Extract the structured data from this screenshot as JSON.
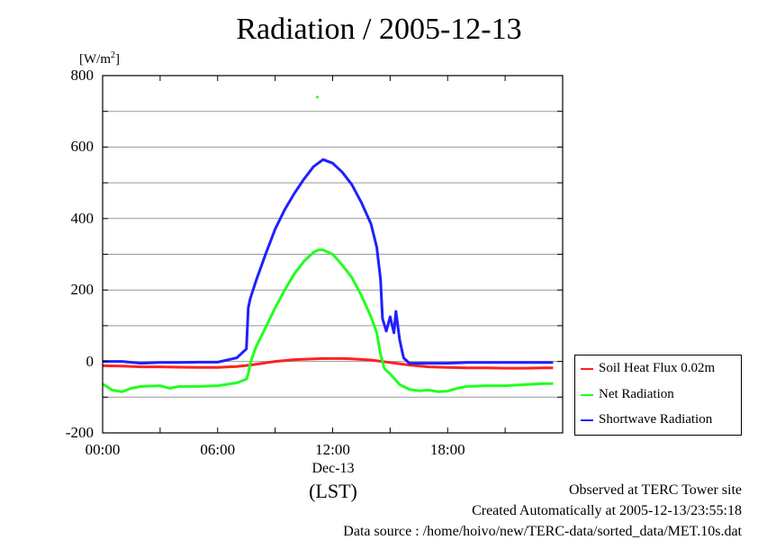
{
  "chart_data": {
    "type": "line",
    "title": "Radiation / 2005-12-13",
    "unit_base": "[W/m",
    "unit_exp": "2",
    "unit_close": "]",
    "xlabel": "(LST)",
    "x_date_label": "Dec-13",
    "xlim": [
      0,
      24
    ],
    "ylim": [
      -200,
      800
    ],
    "x_ticks": [
      {
        "value": 0,
        "label": "00:00"
      },
      {
        "value": 6,
        "label": "06:00"
      },
      {
        "value": 12,
        "label": "12:00"
      },
      {
        "value": 18,
        "label": "18:00"
      }
    ],
    "y_ticks": [
      -200,
      0,
      200,
      400,
      600,
      800
    ],
    "grid": true,
    "legend_position": "bottom-right, outside plot",
    "series": [
      {
        "name": "Soil Heat Flux 0.02m",
        "color": "#ff2020",
        "points": [
          [
            0,
            -12
          ],
          [
            1,
            -13
          ],
          [
            2,
            -15
          ],
          [
            3,
            -15
          ],
          [
            4,
            -16
          ],
          [
            5,
            -17
          ],
          [
            6,
            -17
          ],
          [
            7,
            -14
          ],
          [
            7.7,
            -10
          ],
          [
            8,
            -8
          ],
          [
            9,
            0
          ],
          [
            10,
            5
          ],
          [
            11,
            7
          ],
          [
            11.5,
            8
          ],
          [
            12,
            8
          ],
          [
            12.5,
            8
          ],
          [
            13,
            7
          ],
          [
            14,
            4
          ],
          [
            15,
            -3
          ],
          [
            16,
            -10
          ],
          [
            17,
            -15
          ],
          [
            18,
            -17
          ],
          [
            19,
            -18
          ],
          [
            20,
            -18
          ],
          [
            21,
            -19
          ],
          [
            22,
            -19
          ],
          [
            23,
            -18
          ],
          [
            23.5,
            -18
          ]
        ]
      },
      {
        "name": "Net Radiation",
        "color": "#20ff20",
        "points": [
          [
            0,
            -63
          ],
          [
            0.5,
            -80
          ],
          [
            1,
            -85
          ],
          [
            1.5,
            -75
          ],
          [
            2,
            -70
          ],
          [
            3,
            -68
          ],
          [
            3.5,
            -75
          ],
          [
            4,
            -70
          ],
          [
            5,
            -70
          ],
          [
            6,
            -68
          ],
          [
            7,
            -60
          ],
          [
            7.5,
            -50
          ],
          [
            7.6,
            -35
          ],
          [
            7.7,
            -5
          ],
          [
            8,
            40
          ],
          [
            8.5,
            95
          ],
          [
            9,
            150
          ],
          [
            9.5,
            200
          ],
          [
            10,
            245
          ],
          [
            10.5,
            280
          ],
          [
            11,
            305
          ],
          [
            11.25,
            312
          ],
          [
            11.5,
            312
          ],
          [
            12,
            300
          ],
          [
            12.5,
            270
          ],
          [
            13,
            235
          ],
          [
            13.5,
            185
          ],
          [
            14,
            125
          ],
          [
            14.3,
            80
          ],
          [
            14.5,
            20
          ],
          [
            14.7,
            -20
          ],
          [
            15,
            -35
          ],
          [
            15.5,
            -65
          ],
          [
            16,
            -78
          ],
          [
            16.5,
            -82
          ],
          [
            17,
            -80
          ],
          [
            17.5,
            -85
          ],
          [
            18,
            -83
          ],
          [
            18.5,
            -75
          ],
          [
            19,
            -70
          ],
          [
            20,
            -68
          ],
          [
            21,
            -68
          ],
          [
            22,
            -65
          ],
          [
            23,
            -62
          ],
          [
            23.5,
            -62
          ]
        ]
      },
      {
        "name": "Shortwave Radiation",
        "color": "#2020ff",
        "points": [
          [
            0,
            0
          ],
          [
            1,
            0
          ],
          [
            2,
            -5
          ],
          [
            3,
            -3
          ],
          [
            4,
            -3
          ],
          [
            5,
            -2
          ],
          [
            6,
            -2
          ],
          [
            7,
            10
          ],
          [
            7.5,
            35
          ],
          [
            7.6,
            150
          ],
          [
            7.7,
            175
          ],
          [
            8,
            225
          ],
          [
            8.5,
            300
          ],
          [
            9,
            370
          ],
          [
            9.5,
            425
          ],
          [
            10,
            470
          ],
          [
            10.5,
            510
          ],
          [
            11,
            545
          ],
          [
            11.5,
            565
          ],
          [
            12,
            555
          ],
          [
            12.5,
            530
          ],
          [
            13,
            495
          ],
          [
            13.5,
            445
          ],
          [
            14,
            385
          ],
          [
            14.3,
            320
          ],
          [
            14.5,
            230
          ],
          [
            14.6,
            120
          ],
          [
            14.8,
            85
          ],
          [
            15,
            125
          ],
          [
            15.2,
            80
          ],
          [
            15.3,
            140
          ],
          [
            15.5,
            60
          ],
          [
            15.7,
            10
          ],
          [
            16,
            -5
          ],
          [
            17,
            -5
          ],
          [
            18,
            -5
          ],
          [
            19,
            -3
          ],
          [
            20,
            -3
          ],
          [
            21,
            -3
          ],
          [
            22,
            -3
          ],
          [
            23,
            -3
          ],
          [
            23.5,
            -3
          ]
        ]
      }
    ],
    "outliers": [
      {
        "series": "Net Radiation",
        "x": 11.2,
        "y": 740
      }
    ]
  },
  "footer": {
    "observed": "Observed at TERC Tower site",
    "created": "Created Automatically at 2005-12-13/23:55:18",
    "source": "Data source : /home/hoivo/new/TERC-data/sorted_data/MET.10s.dat"
  }
}
